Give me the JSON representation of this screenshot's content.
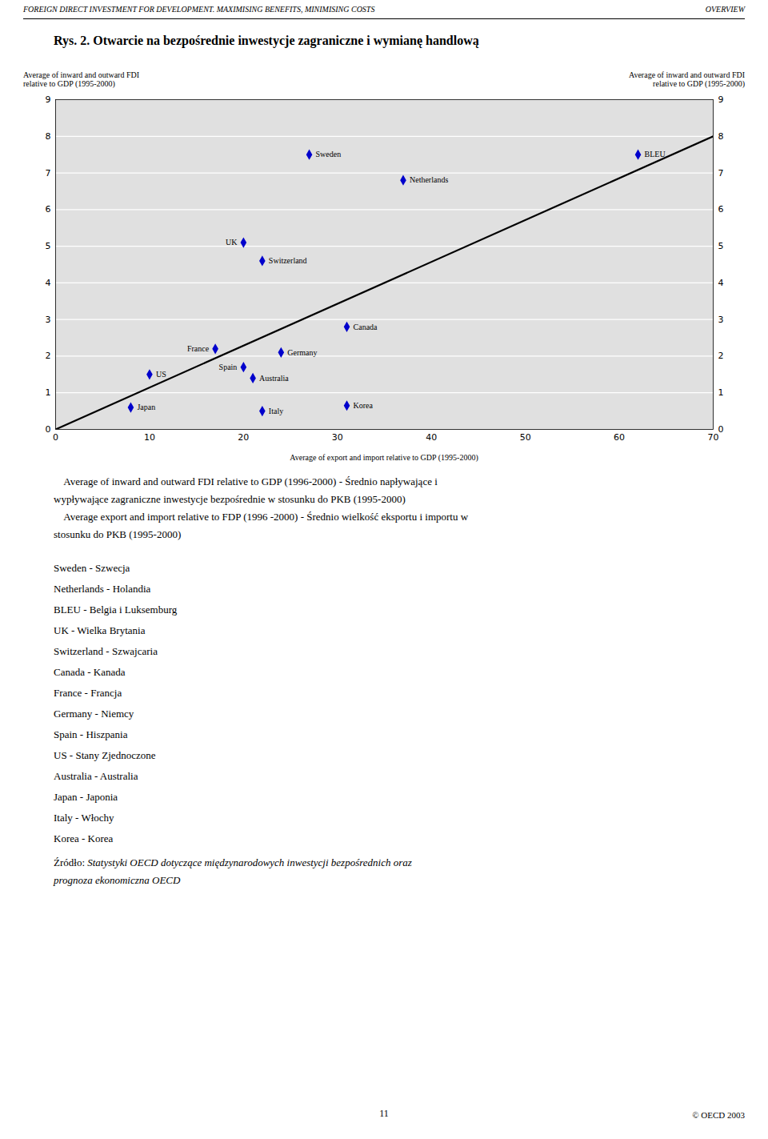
{
  "chart_data": {
    "type": "scatter",
    "header_left": "FOREIGN DIRECT INVESTMENT FOR DEVELOPMENT. MAXIMISING BENEFITS, MINIMISING COSTS",
    "header_right": "OVERVIEW",
    "title": "Rys. 2. Otwarcie na bezpośrednie inwestycje zagraniczne i wymianę handlową",
    "ylabel": "Average of inward and outward FDI\nrelative to GDP (1995-2000)",
    "y2label": "Average of inward and outward FDI\nrelative to GDP (1995-2000)",
    "xlabel": "Average of export and import relative to GDP (1995-2000)",
    "xlim": [
      0,
      70
    ],
    "ylim": [
      0,
      9
    ],
    "y2lim": [
      0,
      9
    ],
    "xticks": [
      0,
      10,
      20,
      30,
      40,
      50,
      60,
      70
    ],
    "yticks": [
      0,
      1,
      2,
      3,
      4,
      5,
      6,
      7,
      8,
      9
    ],
    "y2ticks": [
      0,
      1,
      2,
      3,
      4,
      5,
      6,
      7,
      8,
      9
    ],
    "grid": true,
    "color": "#0000CC",
    "marker": "diamond",
    "points": [
      {
        "label": "Sweden",
        "x": 27,
        "y": 7.5
      },
      {
        "label": "Netherlands",
        "x": 37,
        "y": 6.8
      },
      {
        "label": "BLEU",
        "x": 62,
        "y": 7.5
      },
      {
        "label": "UK",
        "x": 20,
        "y": 5.1
      },
      {
        "label": "Switzerland",
        "x": 22,
        "y": 4.6
      },
      {
        "label": "Canada",
        "x": 31,
        "y": 2.8
      },
      {
        "label": "France",
        "x": 17,
        "y": 2.2
      },
      {
        "label": "Germany",
        "x": 24,
        "y": 2.1
      },
      {
        "label": "Spain",
        "x": 20,
        "y": 1.7
      },
      {
        "label": "Australia",
        "x": 21,
        "y": 1.4
      },
      {
        "label": "US",
        "x": 10,
        "y": 1.5
      },
      {
        "label": "Japan",
        "x": 8,
        "y": 0.6
      },
      {
        "label": "Italy",
        "x": 22,
        "y": 0.5
      },
      {
        "label": "Korea",
        "x": 31,
        "y": 0.65
      }
    ],
    "trendline": {
      "x": [
        0,
        70
      ],
      "y": [
        0,
        8
      ]
    },
    "body_text": [
      "    Average of inward and outward FDI relative to GDP (1996-2000) - Średnio napływające i",
      "wypływające zagraniczne inwestycje bezpośrednie w stosunku do PKB (1995-2000)",
      "    Average export and import relative to FDP (1996 -2000) - Średnio wielkość eksportu i importu w",
      "stosunku do PKB (1995-2000)"
    ],
    "glossary": [
      "Sweden - Szwecja",
      "Netherlands - Holandia",
      "BLEU - Belgia i Luksemburg",
      "UK - Wielka Brytania",
      "Switzerland - Szwajcaria",
      "Canada - Kanada",
      "France - Francja",
      "Germany - Niemcy",
      "Spain - Hiszpania",
      "US - Stany Zjednoczone",
      "Australia - Australia",
      "Japan - Japonia",
      "Italy - Włochy",
      "Korea - Korea"
    ],
    "source_label": "Źródło:",
    "source_text": [
      "Statystyki OECD dotyczące międzynarodowych inwestycji bezpośrednich oraz",
      "prognoza ekonomiczna OECD"
    ],
    "page_number": "11",
    "copyright": "© OECD 2003"
  }
}
